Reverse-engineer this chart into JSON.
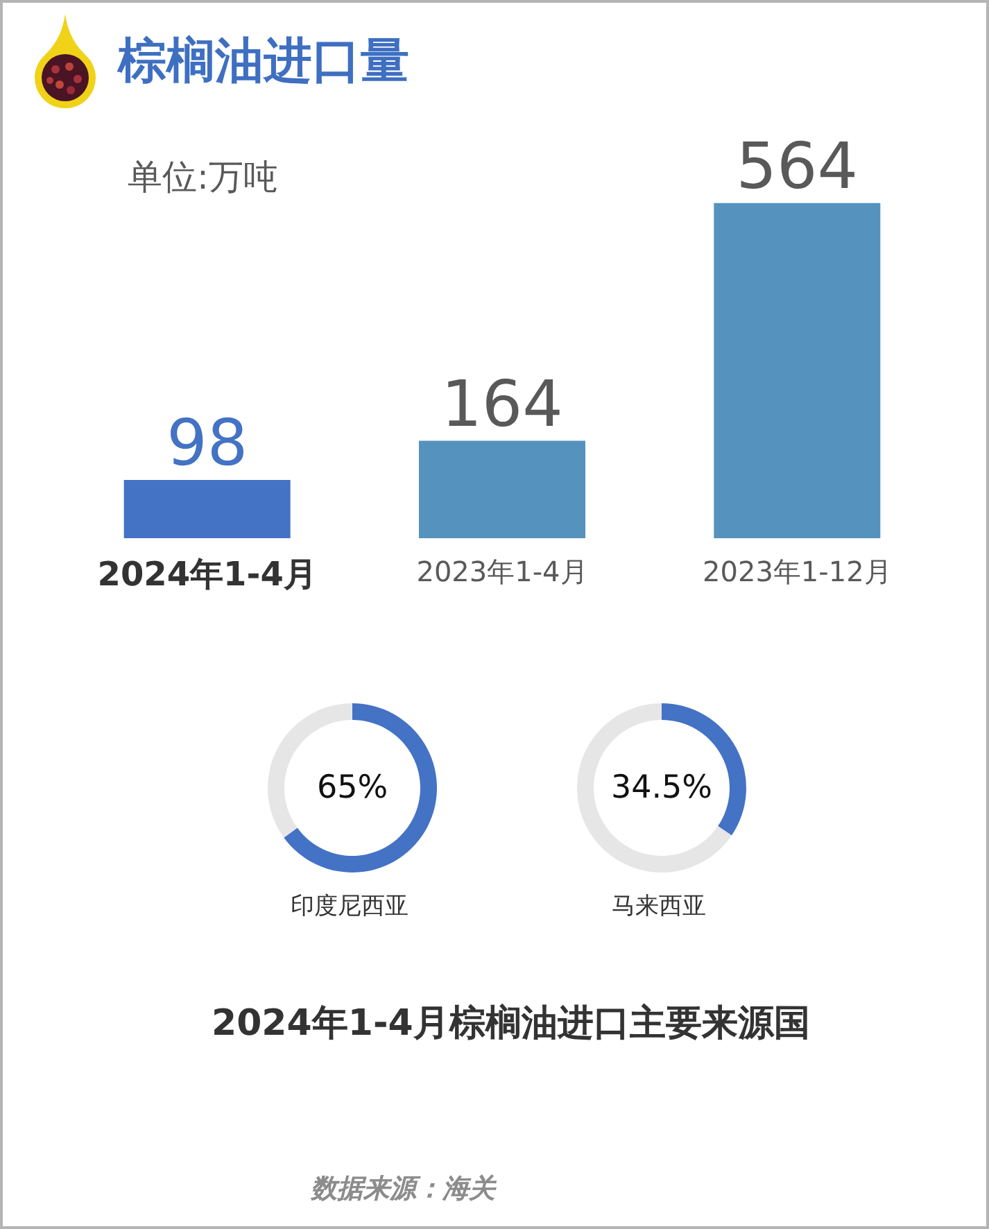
{
  "chart_data": [
    {
      "type": "bar",
      "title": "棕榈油进口量",
      "annotations": [
        "单位:万吨"
      ],
      "categories": [
        "2024年1-4月",
        "2023年1-4月",
        "2023年1-12月"
      ],
      "values": [
        98,
        164,
        564
      ],
      "colors": [
        "#4472c4",
        "#5592be",
        "#5592be"
      ],
      "data_labels": true,
      "tick_labels": "x",
      "grid": false
    },
    {
      "type": "donut",
      "title": "印度尼西亚",
      "categories": [
        null,
        null
      ],
      "values": [
        65,
        35
      ],
      "colors": [
        "#4472c4",
        "#e6e6e6"
      ],
      "value_labels": [
        "65%",
        null
      ]
    },
    {
      "type": "donut",
      "title": "马来西亚",
      "categories": [
        null,
        null
      ],
      "values": [
        34.5,
        65.5
      ],
      "colors": [
        "#4472c4",
        "#e6e6e6"
      ],
      "value_labels": [
        "34.5%",
        null
      ],
      "annotations": [
        "2024年1-4月棕榈油进口主要来源国",
        "数据来源：海关"
      ]
    }
  ]
}
